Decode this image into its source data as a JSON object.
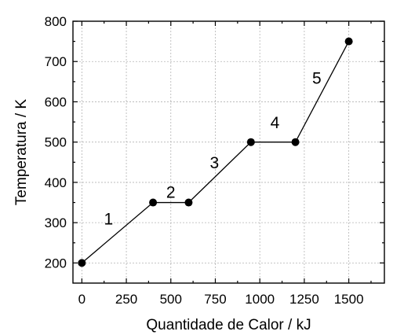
{
  "chart_data": {
    "type": "line",
    "title": "",
    "xlabel": "Quantidade de Calor / kJ",
    "ylabel": "Temperatura / K",
    "xlim": [
      -50,
      1700
    ],
    "ylim": [
      150,
      800
    ],
    "xticks": [
      0,
      250,
      500,
      750,
      1000,
      1250,
      1500
    ],
    "yticks": [
      200,
      300,
      400,
      500,
      600,
      700,
      800
    ],
    "xtick_labels": [
      "0",
      "250",
      "500",
      "750",
      "1000",
      "1250",
      "1500"
    ],
    "ytick_labels": [
      "200",
      "300",
      "400",
      "500",
      "600",
      "700",
      "800"
    ],
    "grid": true,
    "legend": "none",
    "series": [
      {
        "x": [
          0,
          400,
          600,
          950,
          1200,
          1500
        ],
        "y": [
          200,
          350,
          350,
          500,
          500,
          750
        ]
      }
    ],
    "segment_labels": [
      {
        "text": "1",
        "x": 150,
        "y": 295
      },
      {
        "text": "2",
        "x": 500,
        "y": 362
      },
      {
        "text": "3",
        "x": 745,
        "y": 435
      },
      {
        "text": "4",
        "x": 1085,
        "y": 535
      },
      {
        "text": "5",
        "x": 1320,
        "y": 645
      }
    ],
    "colors": {
      "line": "#000000",
      "marker": "#000000",
      "grid": "#b3b3b3"
    }
  }
}
